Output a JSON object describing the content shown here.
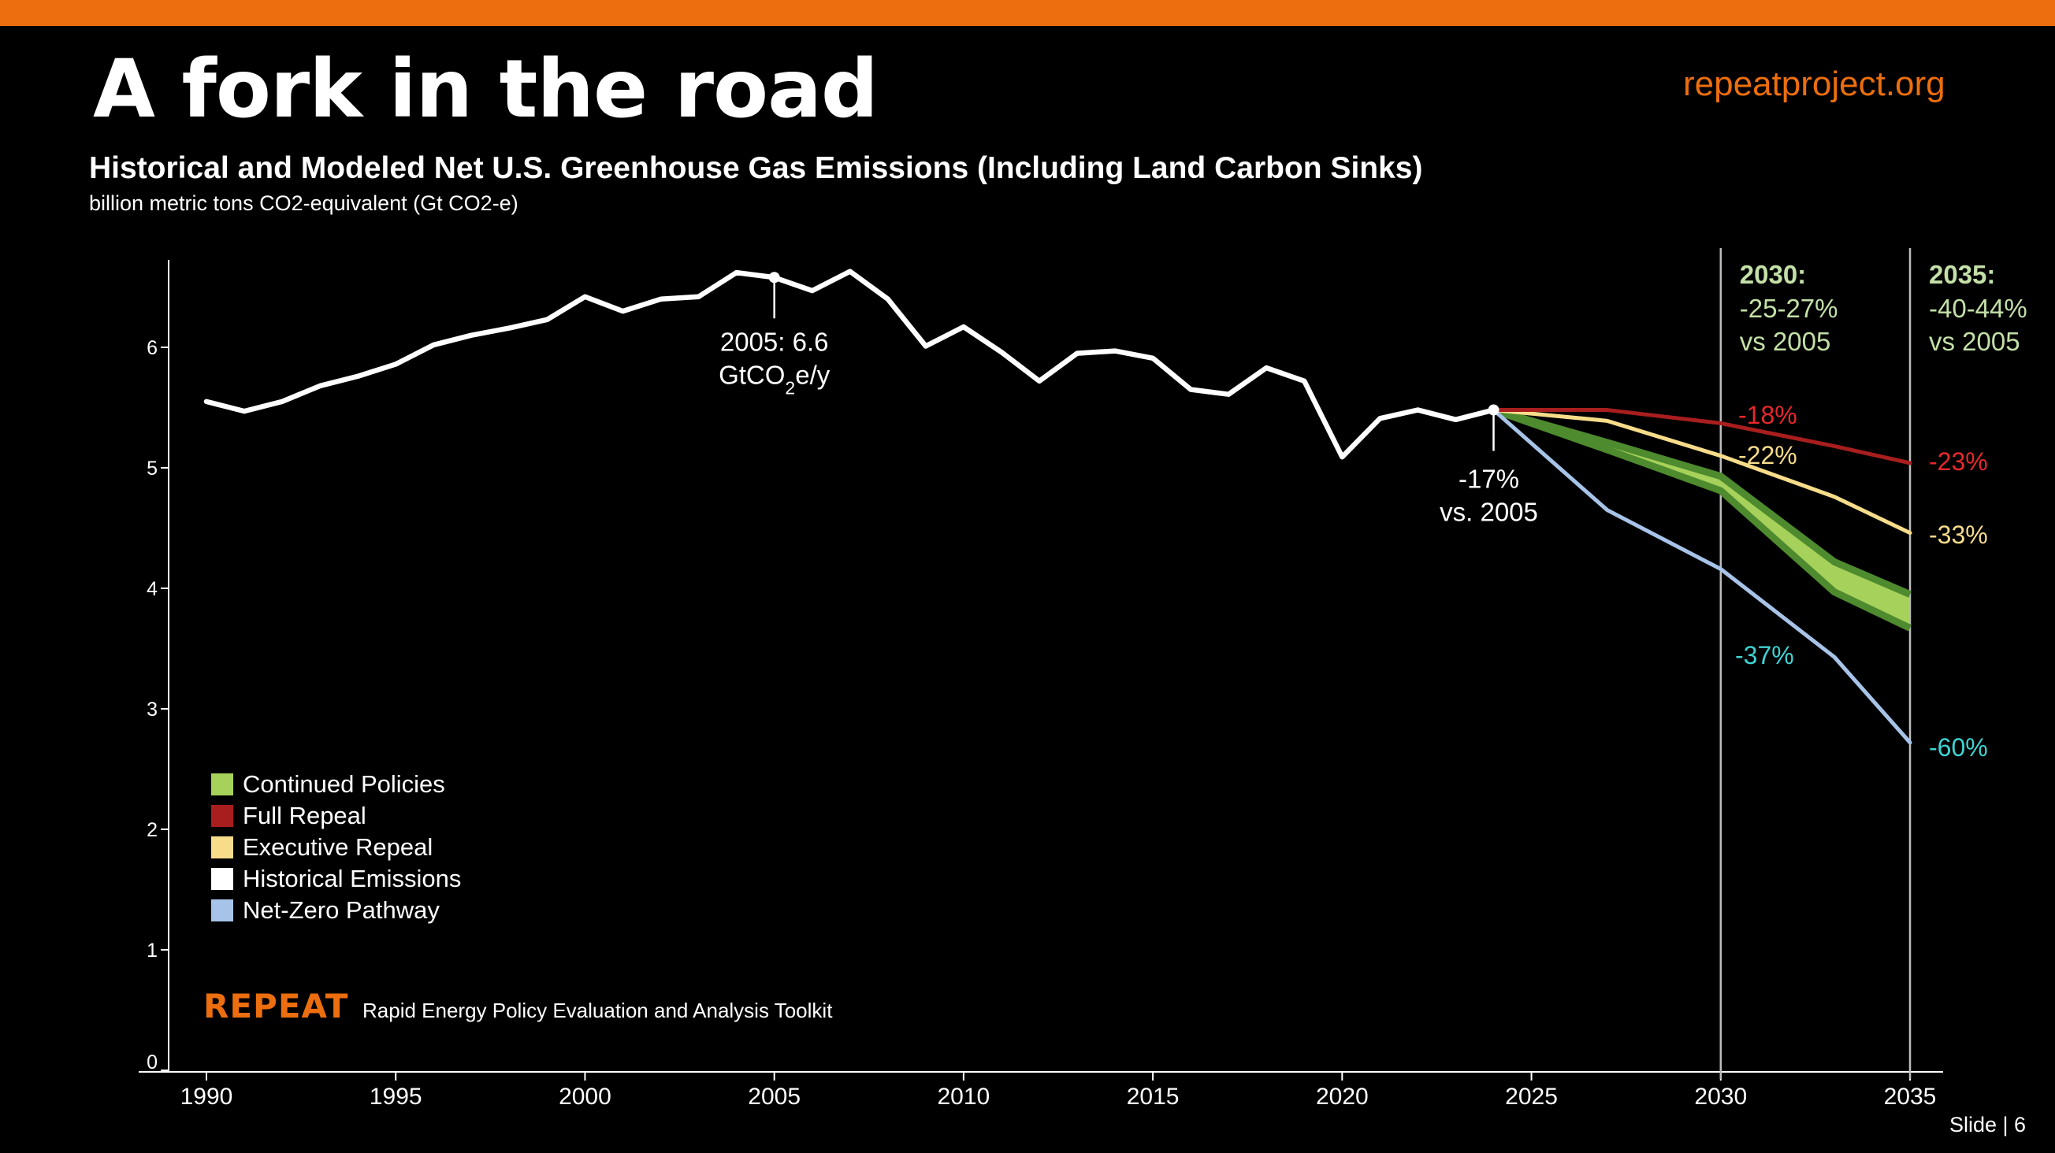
{
  "slide": {
    "title": "A fork in the road",
    "site": "repeatproject.org",
    "slide_number": "Slide | 6",
    "logo": "REPEAT",
    "logo_tagline": "Rapid Energy Policy Evaluation and Analysis Toolkit"
  },
  "colors": {
    "accent": "#EC6E0E",
    "historical": "#FFFFFF",
    "continued_fill": "#A6D15A",
    "continued_edge": "#4E8A2E",
    "full_repeal": "#A81E1E",
    "executive_repeal": "#F7DC8A",
    "net_zero": "#A7C4E8",
    "label_green": "#C3E0A8",
    "label_red": "#E8282B",
    "label_yellow": "#F7DC8A",
    "label_cyan": "#3FD3D3"
  },
  "chart_data": {
    "type": "line",
    "title": "Historical and Modeled Net U.S. Greenhouse Gas Emissions (Including Land Carbon Sinks)",
    "subtitle": "billion metric tons CO2-equivalent (Gt CO2-e)",
    "xlim": [
      1990,
      2035
    ],
    "ylim": [
      0,
      6.75
    ],
    "x_ticks": [
      1990,
      1995,
      2000,
      2005,
      2010,
      2015,
      2020,
      2025,
      2030,
      2035
    ],
    "y_ticks": [
      0,
      1,
      2,
      3,
      4,
      5,
      6
    ],
    "legend_position": "bottom-left",
    "legend": [
      {
        "name": "Continued Policies",
        "color": "#A6D15A"
      },
      {
        "name": "Full Repeal",
        "color": "#A81E1E"
      },
      {
        "name": "Executive Repeal",
        "color": "#F7DC8A"
      },
      {
        "name": "Historical Emissions",
        "color": "#FFFFFF"
      },
      {
        "name": "Net-Zero Pathway",
        "color": "#A7C4E8"
      }
    ],
    "series": [
      {
        "name": "Historical Emissions",
        "x": [
          1990,
          1991,
          1992,
          1993,
          1994,
          1995,
          1996,
          1997,
          1998,
          1999,
          2000,
          2001,
          2002,
          2003,
          2004,
          2005,
          2006,
          2007,
          2008,
          2009,
          2010,
          2011,
          2012,
          2013,
          2014,
          2015,
          2016,
          2017,
          2018,
          2019,
          2020,
          2021,
          2022,
          2023,
          2024
        ],
        "y": [
          5.55,
          5.47,
          5.55,
          5.68,
          5.76,
          5.86,
          6.02,
          6.1,
          6.16,
          6.23,
          6.42,
          6.3,
          6.4,
          6.42,
          6.62,
          6.58,
          6.47,
          6.63,
          6.4,
          6.01,
          6.17,
          5.96,
          5.72,
          5.95,
          5.97,
          5.91,
          5.65,
          5.61,
          5.83,
          5.72,
          5.09,
          5.41,
          5.48,
          5.4,
          5.48
        ]
      },
      {
        "name": "Full Repeal",
        "x": [
          2024,
          2027,
          2030,
          2033,
          2035
        ],
        "y": [
          5.48,
          5.48,
          5.37,
          5.18,
          5.04
        ]
      },
      {
        "name": "Executive Repeal",
        "x": [
          2024,
          2027,
          2030,
          2033,
          2035
        ],
        "y": [
          5.48,
          5.39,
          5.1,
          4.76,
          4.46
        ]
      },
      {
        "name": "Net-Zero Pathway",
        "x": [
          2024,
          2027,
          2030,
          2033,
          2035
        ],
        "y": [
          5.48,
          4.65,
          4.16,
          3.43,
          2.72
        ]
      },
      {
        "name": "Continued Policies",
        "x": [
          2024,
          2027,
          2030,
          2033,
          2035
        ],
        "upper": [
          5.48,
          5.21,
          4.93,
          4.22,
          3.95
        ],
        "lower": [
          5.48,
          5.15,
          4.81,
          3.97,
          3.67
        ]
      }
    ],
    "markers": [
      {
        "x": 2005,
        "y": 6.58,
        "label_lines": [
          "2005: 6.6",
          "GtCO2e/y"
        ]
      },
      {
        "x": 2024,
        "y": 5.48,
        "label_lines": [
          "-17%",
          "vs. 2005"
        ]
      }
    ],
    "reference_lines": [
      {
        "x": 2030,
        "label_title": "2030:",
        "label_lines": [
          "-25-27%",
          "vs 2005"
        ]
      },
      {
        "x": 2035,
        "label_title": "2035:",
        "label_lines": [
          "-40-44%",
          "vs 2005"
        ]
      }
    ],
    "annotations": [
      {
        "text": "-18%",
        "color_key": "label_red",
        "year": 2030
      },
      {
        "text": "-22%",
        "color_key": "label_yellow",
        "year": 2030
      },
      {
        "text": "-37%",
        "color_key": "label_cyan",
        "year": 2030
      },
      {
        "text": "-23%",
        "color_key": "label_red",
        "year": 2035
      },
      {
        "text": "-33%",
        "color_key": "label_yellow",
        "year": 2035
      },
      {
        "text": "-60%",
        "color_key": "label_cyan",
        "year": 2035
      }
    ]
  }
}
